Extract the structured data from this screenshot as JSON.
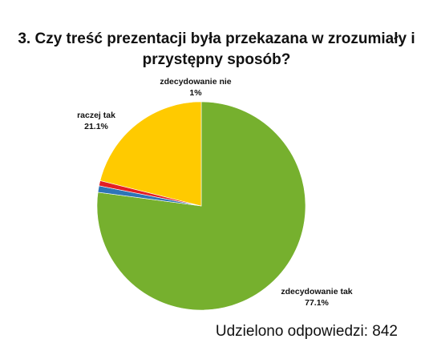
{
  "chart_data": {
    "type": "pie",
    "title": "3. Czy treść prezentacji była przekazana w zrozumiały i przystępny sposób?",
    "slices": [
      {
        "label": "zdecydowanie tak",
        "percent_label": "77.1%",
        "value": 77.1,
        "color": "#76B02E"
      },
      {
        "label": "zdecydowanie nie",
        "percent_label": "1%",
        "value": 1.0,
        "color": "#2E75B6"
      },
      {
        "label": "",
        "percent_label": "",
        "value": 0.8,
        "color": "#E31E24"
      },
      {
        "label": "raczej tak",
        "percent_label": "21.1%",
        "value": 21.1,
        "color": "#FFCA00"
      }
    ]
  },
  "footer": {
    "responses_text": "Udzielono odpowiedzi: 842"
  }
}
